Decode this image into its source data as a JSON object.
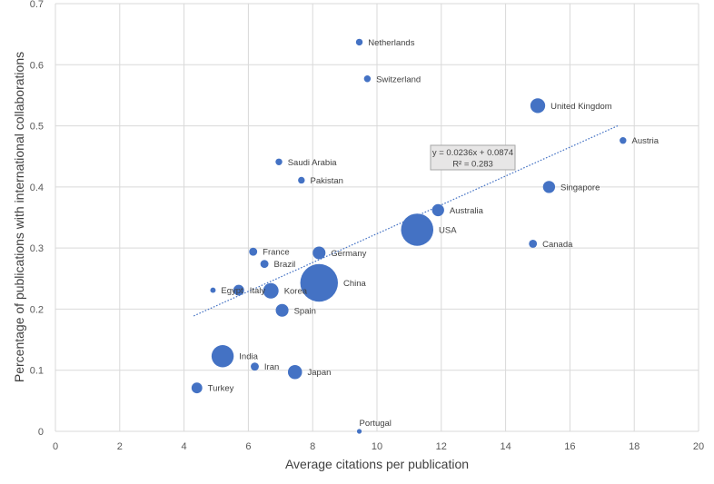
{
  "chart_data": {
    "type": "scatter",
    "xlabel": "Average citations per publication",
    "ylabel": "Percentage of publications with international collaborations",
    "xlim": [
      0,
      20
    ],
    "ylim": [
      0,
      0.7
    ],
    "x_ticks": [
      "0",
      "2",
      "4",
      "6",
      "8",
      "10",
      "12",
      "14",
      "16",
      "18",
      "20"
    ],
    "y_ticks": [
      "0",
      "0.1",
      "0.2",
      "0.3",
      "0.4",
      "0.5",
      "0.6",
      "0.7"
    ],
    "grid": true,
    "marker_color": "#4472c4",
    "trendline": {
      "slope": 0.0236,
      "intercept": 0.0874,
      "x_range": [
        4.3,
        17.5
      ],
      "color": "#4472c4",
      "style": "dotted",
      "equation": "y = 0.0236x + 0.0874",
      "r_squared": "R² = 0.283"
    },
    "points": [
      {
        "label": "Netherlands",
        "x": 9.45,
        "y": 0.637,
        "size": 1
      },
      {
        "label": "Switzerland",
        "x": 9.7,
        "y": 0.577,
        "size": 1
      },
      {
        "label": "United Kingdom",
        "x": 15.0,
        "y": 0.533,
        "size": 2.2
      },
      {
        "label": "Austria",
        "x": 17.65,
        "y": 0.476,
        "size": 1
      },
      {
        "label": "Saudi Arabia",
        "x": 6.95,
        "y": 0.441,
        "size": 1
      },
      {
        "label": "Pakistan",
        "x": 7.65,
        "y": 0.411,
        "size": 1
      },
      {
        "label": "Singapore",
        "x": 15.35,
        "y": 0.4,
        "size": 1.8
      },
      {
        "label": "Australia",
        "x": 11.9,
        "y": 0.362,
        "size": 1.8
      },
      {
        "label": "USA",
        "x": 11.25,
        "y": 0.33,
        "size": 4.8
      },
      {
        "label": "Canada",
        "x": 14.85,
        "y": 0.307,
        "size": 1.2
      },
      {
        "label": "France",
        "x": 6.15,
        "y": 0.294,
        "size": 1.2
      },
      {
        "label": "Germany",
        "x": 8.2,
        "y": 0.292,
        "size": 1.9
      },
      {
        "label": "Brazil",
        "x": 6.5,
        "y": 0.274,
        "size": 1.2
      },
      {
        "label": "China",
        "x": 8.2,
        "y": 0.243,
        "size": 5.6
      },
      {
        "label": "Egypt",
        "x": 4.9,
        "y": 0.231,
        "size": 0.8
      },
      {
        "label": "Italy",
        "x": 5.7,
        "y": 0.231,
        "size": 1.6
      },
      {
        "label": "Korea",
        "x": 6.7,
        "y": 0.23,
        "size": 2.3
      },
      {
        "label": "Spain",
        "x": 7.05,
        "y": 0.198,
        "size": 1.9
      },
      {
        "label": "India",
        "x": 5.2,
        "y": 0.123,
        "size": 3.3
      },
      {
        "label": "Iran",
        "x": 6.2,
        "y": 0.106,
        "size": 1.2
      },
      {
        "label": "Japan",
        "x": 7.45,
        "y": 0.097,
        "size": 2.1
      },
      {
        "label": "Turkey",
        "x": 4.4,
        "y": 0.071,
        "size": 1.6
      },
      {
        "label": "Portugal",
        "x": 9.45,
        "y": 0.0,
        "size": 0.7
      }
    ]
  }
}
